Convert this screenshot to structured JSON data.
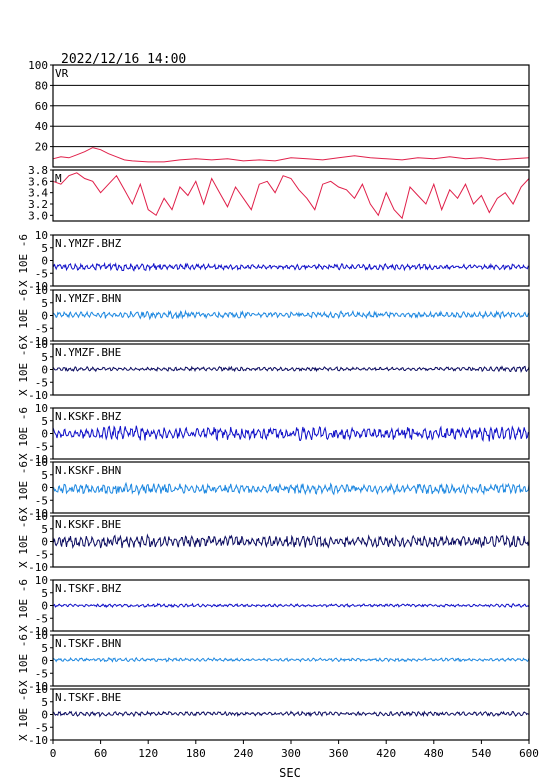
{
  "header": {
    "datetime": "2022/12/16 14:00"
  },
  "x_axis": {
    "label": "SEC",
    "ticks": [
      "0",
      "60",
      "120",
      "180",
      "240",
      "300",
      "360",
      "420",
      "480",
      "540",
      "600"
    ]
  },
  "colors": {
    "vr_m": "#e0204a",
    "bhz": "#1010c8",
    "bhn": "#1e88e0",
    "bhe": "#0c0c60",
    "frame": "#000000",
    "grid": "#000000"
  },
  "chart_data": [
    {
      "type": "line",
      "title": "VR",
      "ylim": [
        0,
        100
      ],
      "yticks": [
        "100",
        "80",
        "60",
        "40",
        "20"
      ],
      "grid": true,
      "series": [
        {
          "x": [
            0,
            10,
            20,
            30,
            40,
            50,
            60,
            70,
            80,
            90,
            100,
            120,
            140,
            160,
            180,
            200,
            220,
            240,
            260,
            280,
            300,
            320,
            340,
            360,
            380,
            400,
            420,
            440,
            460,
            480,
            500,
            520,
            540,
            560,
            580,
            600
          ],
          "y": [
            8,
            10,
            9,
            12,
            15,
            19,
            17,
            13,
            10,
            7,
            6,
            5,
            5,
            7,
            8,
            7,
            8,
            6,
            7,
            6,
            9,
            8,
            7,
            9,
            11,
            9,
            8,
            7,
            9,
            8,
            10,
            8,
            9,
            7,
            8,
            9
          ]
        }
      ]
    },
    {
      "type": "line",
      "title": "M",
      "ylim": [
        2.9,
        3.8
      ],
      "yticks": [
        "3.8",
        "3.6",
        "3.4",
        "3.2",
        "3.0"
      ],
      "grid": false,
      "series": [
        {
          "x": [
            0,
            10,
            20,
            30,
            40,
            50,
            60,
            70,
            80,
            90,
            100,
            110,
            120,
            130,
            140,
            150,
            160,
            170,
            180,
            190,
            200,
            210,
            220,
            230,
            240,
            250,
            260,
            270,
            280,
            290,
            300,
            310,
            320,
            330,
            340,
            350,
            360,
            370,
            380,
            390,
            400,
            410,
            420,
            430,
            440,
            450,
            460,
            470,
            480,
            490,
            500,
            510,
            520,
            530,
            540,
            550,
            560,
            570,
            580,
            590,
            600
          ],
          "y": [
            3.6,
            3.55,
            3.7,
            3.75,
            3.65,
            3.6,
            3.4,
            3.55,
            3.7,
            3.45,
            3.2,
            3.55,
            3.1,
            3.0,
            3.3,
            3.1,
            3.5,
            3.35,
            3.6,
            3.2,
            3.65,
            3.4,
            3.15,
            3.5,
            3.3,
            3.1,
            3.55,
            3.6,
            3.4,
            3.7,
            3.65,
            3.45,
            3.3,
            3.1,
            3.55,
            3.6,
            3.5,
            3.45,
            3.3,
            3.55,
            3.2,
            3.0,
            3.4,
            3.1,
            2.95,
            3.5,
            3.35,
            3.2,
            3.55,
            3.1,
            3.45,
            3.3,
            3.55,
            3.2,
            3.35,
            3.05,
            3.3,
            3.4,
            3.2,
            3.5,
            3.65
          ]
        }
      ]
    },
    {
      "type": "line",
      "title": "N.YMZF.BHZ",
      "ylim": [
        -10,
        10
      ],
      "color_key": "bhz",
      "offset": -2.5,
      "amp": [
        1.1,
        1.4,
        1.2,
        1.0,
        0.9,
        1.0,
        1.1,
        1.0,
        0.8,
        0.9,
        1.0
      ],
      "seed": 11
    },
    {
      "type": "line",
      "title": "N.YMZF.BHN",
      "ylim": [
        -10,
        10
      ],
      "color_key": "bhn",
      "offset": 0.3,
      "amp": [
        1.0,
        1.3,
        1.4,
        1.1,
        1.0,
        1.0,
        1.2,
        1.0,
        1.0,
        1.1,
        1.0
      ],
      "seed": 23
    },
    {
      "type": "line",
      "title": "N.YMZF.BHE",
      "ylim": [
        -10,
        10
      ],
      "color_key": "bhe",
      "offset": 0.2,
      "amp": [
        0.8,
        0.6,
        0.7,
        0.8,
        0.6,
        0.7,
        0.6,
        0.6,
        0.7,
        0.9,
        0.8
      ],
      "seed": 37
    },
    {
      "type": "line",
      "title": "N.KSKF.BHZ",
      "ylim": [
        -10,
        10
      ],
      "color_key": "bhz",
      "offset": 0.0,
      "amp": [
        2.0,
        2.8,
        2.2,
        2.3,
        2.0,
        2.6,
        2.1,
        2.3,
        2.2,
        2.8,
        2.2
      ],
      "seed": 41
    },
    {
      "type": "line",
      "title": "N.KSKF.BHN",
      "ylim": [
        -10,
        10
      ],
      "color_key": "bhn",
      "offset": -0.5,
      "amp": [
        1.6,
        2.0,
        1.8,
        1.8,
        1.6,
        1.9,
        1.7,
        1.8,
        1.8,
        1.9,
        1.8
      ],
      "seed": 53
    },
    {
      "type": "line",
      "title": "N.KSKF.BHE",
      "ylim": [
        -10,
        10
      ],
      "color_key": "bhe",
      "offset": 0.0,
      "amp": [
        2.0,
        2.4,
        2.1,
        2.0,
        1.9,
        2.2,
        2.0,
        2.1,
        2.0,
        2.3,
        2.1
      ],
      "seed": 67
    },
    {
      "type": "line",
      "title": "N.TSKF.BHZ",
      "ylim": [
        -10,
        10
      ],
      "color_key": "bhz",
      "offset": 0.0,
      "amp": [
        0.5,
        0.6,
        0.6,
        0.5,
        0.5,
        0.5,
        0.5,
        0.5,
        0.5,
        0.6,
        0.5
      ],
      "seed": 71
    },
    {
      "type": "line",
      "title": "N.TSKF.BHN",
      "ylim": [
        -10,
        10
      ],
      "color_key": "bhn",
      "offset": 0.3,
      "amp": [
        0.6,
        0.7,
        0.6,
        0.6,
        0.5,
        0.6,
        0.6,
        0.6,
        0.6,
        0.6,
        0.6
      ],
      "seed": 83
    },
    {
      "type": "line",
      "title": "N.TSKF.BHE",
      "ylim": [
        -10,
        10
      ],
      "color_key": "bhe",
      "offset": 0.3,
      "amp": [
        0.9,
        0.8,
        0.7,
        0.8,
        0.7,
        0.8,
        0.7,
        0.8,
        0.7,
        0.8,
        0.8
      ],
      "seed": 97
    }
  ],
  "seismic_ylabel": "X 10E -6",
  "seismic_yticks": [
    "10",
    "5",
    "0",
    "-5",
    "-10"
  ]
}
